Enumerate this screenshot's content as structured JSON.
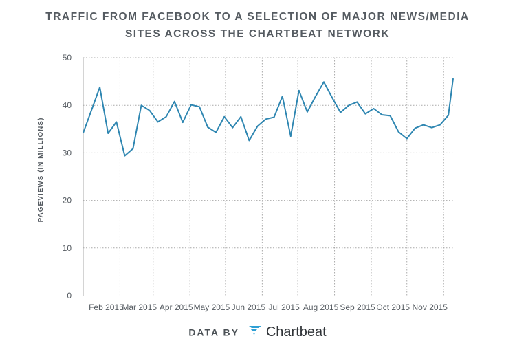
{
  "title_lines": [
    "TRAFFIC FROM FACEBOOK TO A SELECTION OF MAJOR NEWS/MEDIA",
    "SITES ACROSS THE CHARTBEAT NETWORK"
  ],
  "footer": {
    "data_by": "DATA BY",
    "brand": "Chartbeat"
  },
  "colors": {
    "line": "#2e86b1",
    "grid": "#a9a9a9",
    "axis_text": "#555b61",
    "logo": "#2e9fd4"
  },
  "chart_data": {
    "type": "line",
    "title": "TRAFFIC FROM FACEBOOK TO A SELECTION OF MAJOR NEWS/MEDIA SITES ACROSS THE CHARTBEAT NETWORK",
    "ylabel": "PAGEVIEWS (IN MILLIONS)",
    "xlabel": "",
    "ylim": [
      0,
      50
    ],
    "yticks": [
      0,
      10,
      20,
      30,
      40,
      50
    ],
    "xlim_days": [
      0,
      312
    ],
    "month_ticks": [
      {
        "label": "Feb 2015",
        "day": 31
      },
      {
        "label": "Mar 2015",
        "day": 59
      },
      {
        "label": "Apr 2015",
        "day": 90
      },
      {
        "label": "May 2015",
        "day": 120
      },
      {
        "label": "Jun 2015",
        "day": 151
      },
      {
        "label": "Jul 2015",
        "day": 181
      },
      {
        "label": "Aug 2015",
        "day": 212
      },
      {
        "label": "Sep 2015",
        "day": 243
      },
      {
        "label": "Oct 2015",
        "day": 273
      },
      {
        "label": "Nov 2015",
        "day": 304
      }
    ],
    "series": [
      {
        "name": "Facebook pageviews",
        "days": [
          0,
          7,
          14,
          21,
          28,
          35,
          42,
          49,
          56,
          63,
          70,
          77,
          84,
          91,
          98,
          105,
          112,
          119,
          126,
          133,
          140,
          147,
          154,
          161,
          168,
          175,
          182,
          189,
          196,
          203,
          210,
          217,
          224,
          231,
          238,
          245,
          252,
          259,
          266,
          273,
          280,
          287,
          294,
          301,
          308,
          312
        ],
        "values": [
          34.2,
          39.0,
          43.8,
          34.1,
          36.5,
          29.4,
          30.9,
          40.0,
          38.9,
          36.5,
          37.6,
          40.8,
          36.4,
          40.1,
          39.7,
          35.4,
          34.3,
          37.6,
          35.3,
          37.6,
          32.6,
          35.6,
          37.1,
          37.5,
          41.9,
          33.5,
          43.1,
          38.6,
          41.9,
          44.9,
          41.6,
          38.5,
          40.0,
          40.7,
          38.2,
          39.3,
          38.0,
          37.8,
          34.4,
          33.0,
          35.2,
          35.9,
          35.3,
          35.9,
          37.9,
          45.6
        ]
      }
    ]
  }
}
